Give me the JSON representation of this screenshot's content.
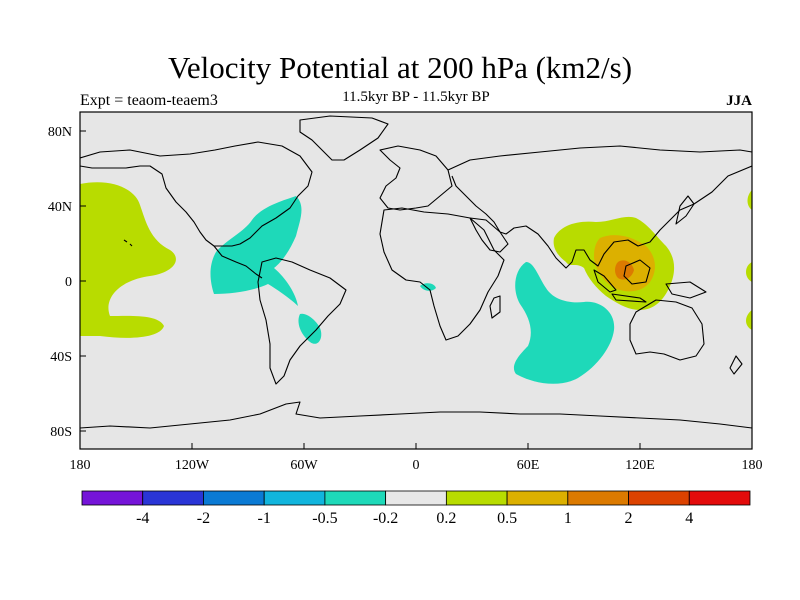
{
  "header": {
    "title": "Velocity Potential at 200 hPa (km2/s)",
    "subtitle": "11.5kyr BP - 11.5kyr BP",
    "left_label": "Expt = teaom-teaem3",
    "right_label": "JJA"
  },
  "map": {
    "projection": "cylindrical-equidistant",
    "background_color": "#e6e6e6",
    "lon_range": [
      -180,
      180
    ],
    "lat_range": [
      -90,
      90
    ],
    "x_tick_labels": [
      "180",
      "120W",
      "60W",
      "0",
      "60E",
      "120E",
      "180"
    ],
    "y_tick_labels": [
      "80N",
      "40N",
      "0",
      "40S",
      "80S"
    ]
  },
  "colorbar": {
    "colors": [
      "#7514d8",
      "#2a35d6",
      "#0a7ad4",
      "#11b5dd",
      "#1ed9b9",
      "#e8e8e8",
      "#b8dc00",
      "#dcb000",
      "#dc7a00",
      "#dc4200",
      "#e30b0b"
    ],
    "labels": [
      "-4",
      "-2",
      "-1",
      "-0.5",
      "-0.2",
      "0.2",
      "0.5",
      "1",
      "2",
      "4"
    ]
  },
  "field_colors": {
    "negative_weak": "#1ed9b9",
    "positive_weak": "#b8dc00",
    "positive_moderate": "#dcb000",
    "positive_strong": "#dc7a00"
  }
}
